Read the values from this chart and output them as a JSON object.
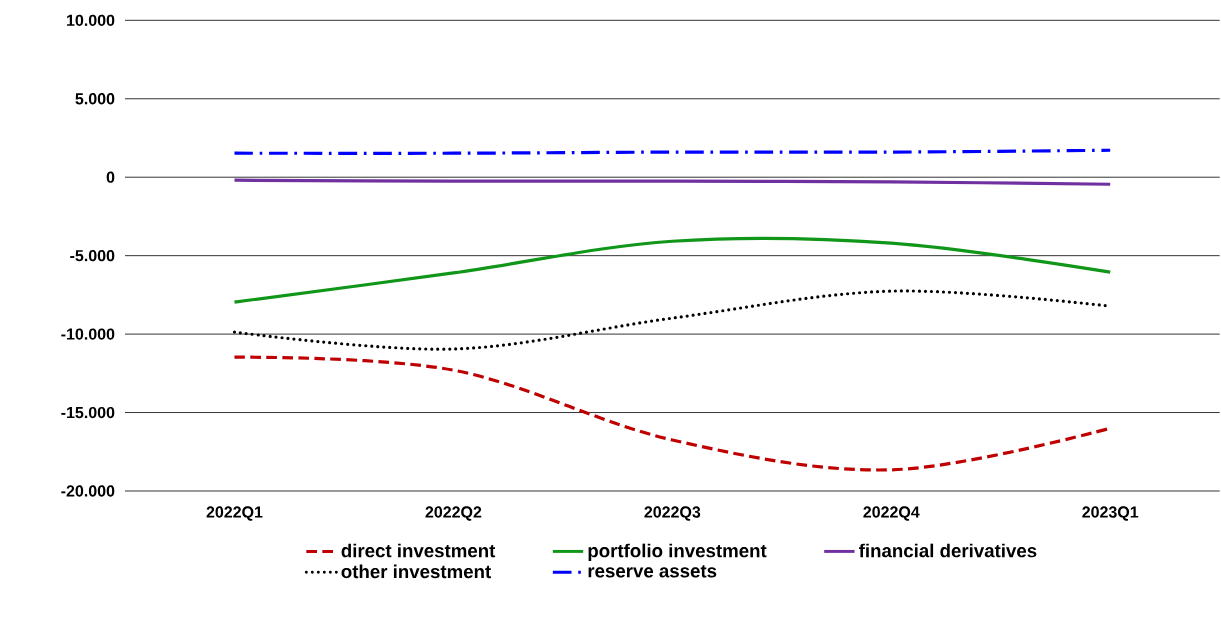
{
  "chart_data": {
    "type": "line",
    "categories": [
      "2022Q1",
      "2022Q2",
      "2022Q3",
      "2022Q4",
      "2023Q1"
    ],
    "series": [
      {
        "name": "direct investment",
        "color": "#c00000",
        "line_style": "dashed",
        "values": [
          -11470,
          -12300,
          -16750,
          -18650,
          -16000
        ]
      },
      {
        "name": "portfolio investment",
        "color": "#109618",
        "line_style": "solid",
        "values": [
          -7960,
          -6100,
          -4080,
          -4200,
          -6050
        ]
      },
      {
        "name": "financial derivatives",
        "color": "#7030a0",
        "line_style": "solid",
        "values": [
          -190,
          -250,
          -250,
          -300,
          -450
        ]
      },
      {
        "name": "other investment",
        "color": "#000000",
        "line_style": "dotted",
        "values": [
          -9870,
          -10950,
          -8980,
          -7260,
          -8220
        ]
      },
      {
        "name": "reserve assets",
        "color": "#0000ff",
        "line_style": "dashdot",
        "values": [
          1530,
          1530,
          1600,
          1600,
          1720
        ]
      }
    ],
    "ylim": [
      -20000,
      10000
    ],
    "yticks": [
      {
        "value": -20000,
        "label": "-20.000"
      },
      {
        "value": -15000,
        "label": "-15.000"
      },
      {
        "value": -10000,
        "label": "-10.000"
      },
      {
        "value": -5000,
        "label": "-5.000"
      },
      0,
      {
        "value": 5000,
        "label": "5.000"
      },
      {
        "value": 10000,
        "label": "10.000"
      }
    ],
    "grid": "y",
    "legend": "bottom",
    "marker": "none"
  }
}
